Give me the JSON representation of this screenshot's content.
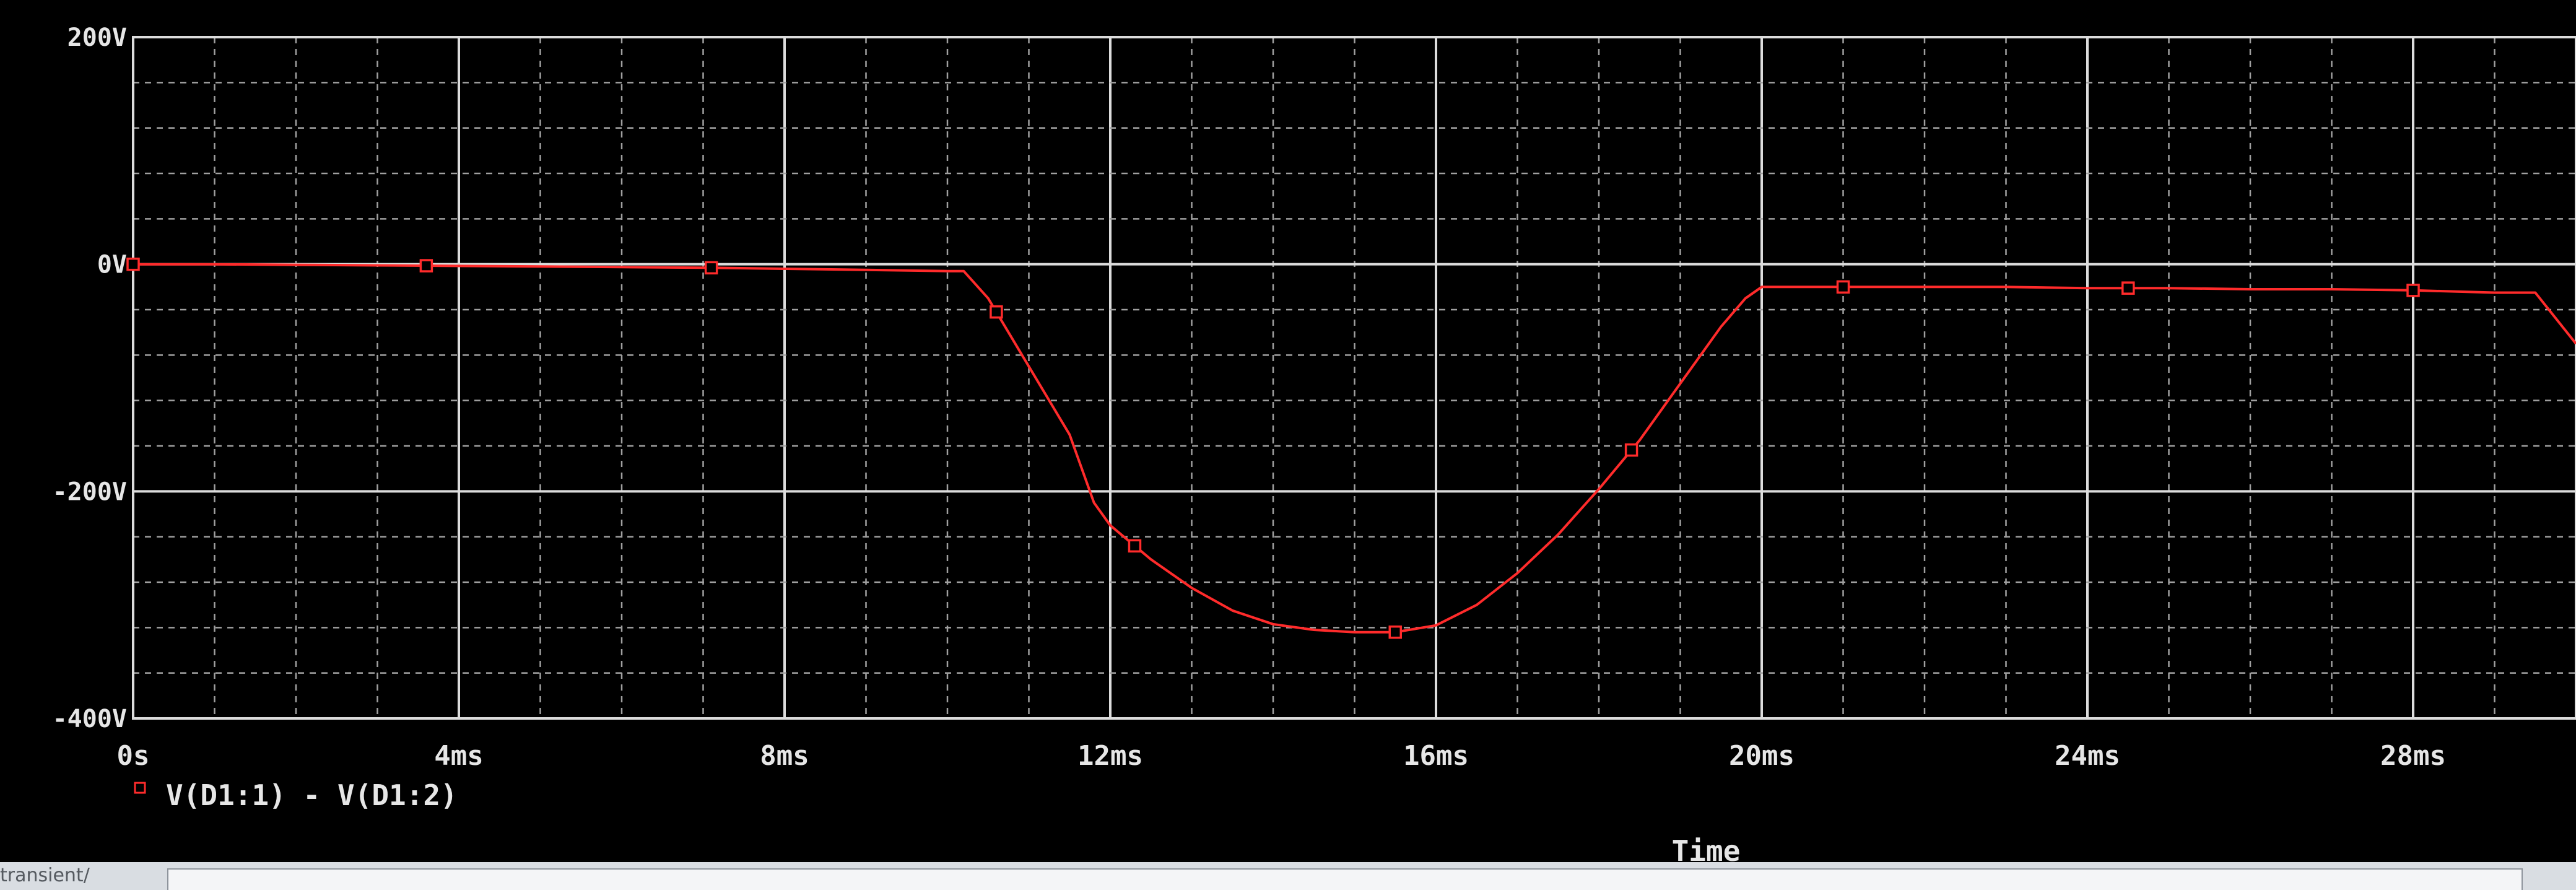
{
  "chart_data": {
    "type": "line",
    "xlabel": "Time",
    "ylabel": "",
    "xlim": [
      0,
      30
    ],
    "ylim": [
      -400,
      200
    ],
    "x_unit": "ms",
    "y_unit": "V",
    "x_ticks": [
      0,
      4,
      8,
      12,
      16,
      20,
      24,
      28
    ],
    "x_tick_labels": [
      "0s",
      "4ms",
      "8ms",
      "12ms",
      "16ms",
      "20ms",
      "24ms",
      "28ms"
    ],
    "y_ticks": [
      200,
      0,
      -200,
      -400
    ],
    "y_tick_labels": [
      "200V",
      "0V",
      "-200V",
      "-400V"
    ],
    "grid": true,
    "legend_position": "bottom-left",
    "series": [
      {
        "name": "V(D1:1) - V(D1:2)",
        "x": [
          0,
          1,
          2,
          3,
          4,
          5,
          6,
          7,
          8,
          9,
          10,
          10.2,
          10.5,
          11,
          11.5,
          11.8,
          12,
          12.5,
          13,
          13.5,
          14,
          14.5,
          15,
          15.5,
          16,
          16.5,
          17,
          17.5,
          18,
          18.5,
          19,
          19.5,
          19.8,
          20,
          21,
          22,
          23,
          24,
          25,
          26,
          27,
          28,
          29,
          29.5,
          30
        ],
        "y": [
          0,
          0,
          -0.5,
          -1,
          -1.5,
          -2,
          -2.5,
          -3,
          -4,
          -5,
          -6,
          -6,
          -30,
          -90,
          -150,
          -210,
          -230,
          -260,
          -285,
          -305,
          -317,
          -322,
          -324,
          -324,
          -318,
          -300,
          -272,
          -238,
          -198,
          -155,
          -105,
          -55,
          -30,
          -20,
          -20,
          -20,
          -20,
          -21,
          -21,
          -22,
          -22,
          -23,
          -25,
          -25,
          -70
        ],
        "markers_at_x": [
          0,
          3.6,
          7.1,
          10.6,
          12.3,
          15.5,
          18.4,
          21,
          24.5,
          28
        ]
      }
    ],
    "colors": {
      "background": "#000000",
      "grid_major": "#dcdcdc",
      "grid_minor": "#a0a0a0",
      "trace": "#ff2b2b",
      "text": "#e6e6e6"
    }
  },
  "labels": {
    "legend": "V(D1:1) - V(D1:2)",
    "x_axis_title": "Time",
    "bottom_field_fragment": "transient/"
  }
}
